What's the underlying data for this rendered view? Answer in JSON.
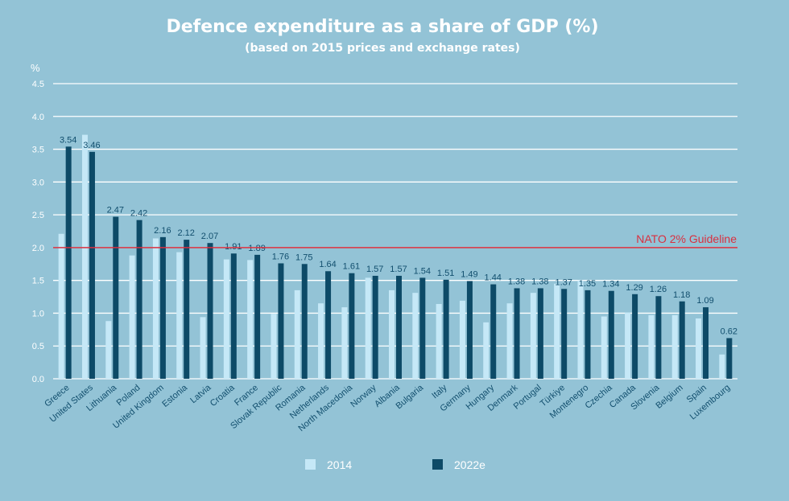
{
  "chart_data": {
    "type": "bar",
    "title": "Defence expenditure as a share of GDP (%)",
    "subtitle": "(based on 2015 prices and exchange rates)",
    "ylabel": "%",
    "ylim": [
      0,
      4.5
    ],
    "yticks": [
      "0.0",
      "0.5",
      "1.0",
      "1.5",
      "2.0",
      "2.5",
      "3.0",
      "3.5",
      "4.0",
      "4.5"
    ],
    "grid": true,
    "legend_position": "bottom",
    "categories": [
      "Greece",
      "United States",
      "Lithuania",
      "Poland",
      "United Kingdom",
      "Estonia",
      "Latvia",
      "Croatia",
      "France",
      "Slovak Republic",
      "Romania",
      "Netherlands",
      "North Macedonia",
      "Norway",
      "Albania",
      "Bulgaria",
      "Italy",
      "Germany",
      "Hungary",
      "Denmark",
      "Portugal",
      "Türkiye",
      "Montenegro",
      "Czechia",
      "Canada",
      "Slovenia",
      "Belgium",
      "Spain",
      "Luxembourg"
    ],
    "series": [
      {
        "name": "2014",
        "color": "#c5e8f7",
        "values": [
          2.21,
          3.72,
          0.88,
          1.88,
          2.14,
          1.93,
          0.94,
          1.82,
          1.81,
          0.99,
          1.35,
          1.15,
          1.09,
          1.54,
          1.35,
          1.31,
          1.14,
          1.19,
          0.86,
          1.15,
          1.31,
          1.45,
          1.5,
          0.95,
          1.01,
          0.97,
          0.97,
          0.92,
          0.37
        ]
      },
      {
        "name": "2022e",
        "color": "#0d4a67",
        "values": [
          3.54,
          3.46,
          2.47,
          2.42,
          2.16,
          2.12,
          2.07,
          1.91,
          1.89,
          1.76,
          1.75,
          1.64,
          1.61,
          1.57,
          1.57,
          1.54,
          1.51,
          1.49,
          1.44,
          1.38,
          1.38,
          1.37,
          1.35,
          1.34,
          1.29,
          1.26,
          1.18,
          1.09,
          0.62
        ]
      }
    ],
    "value_labels": [
      "3.54",
      "3.46",
      "2.47",
      "2.42",
      "2.16",
      "2.12",
      "2.07",
      "1.91",
      "1.89",
      "1.76",
      "1.75",
      "1.64",
      "1.61",
      "1.57",
      "1.57",
      "1.54",
      "1.51",
      "1.49",
      "1.44",
      "1.38",
      "1.38",
      "1.37",
      "1.35",
      "1.34",
      "1.29",
      "1.26",
      "1.18",
      "1.09",
      "0.62"
    ],
    "guideline": {
      "value": 2.0,
      "label": "NATO 2% Guideline",
      "color": "#d92f3f"
    },
    "colors": {
      "background": "#93c3d6",
      "gridline": "#ffffff",
      "label": "#124f6e"
    }
  }
}
